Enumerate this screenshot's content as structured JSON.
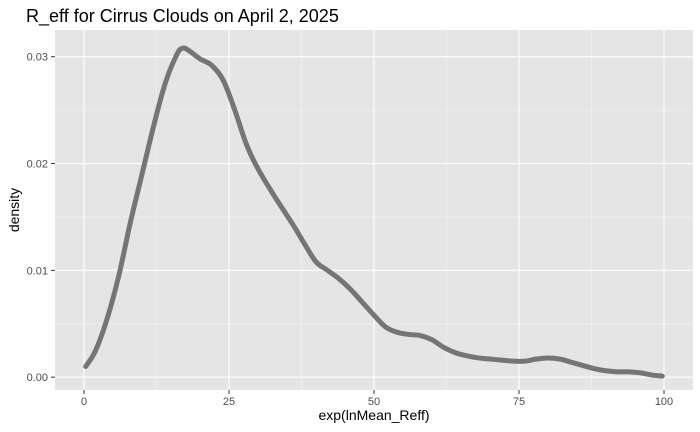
{
  "chart_data": {
    "type": "area",
    "title": "R_eff for Cirrus Clouds on April 2, 2025",
    "xlabel": "exp(lnMean_Reff)",
    "ylabel": "density",
    "xlim": [
      -5,
      105
    ],
    "ylim": [
      -0.0012,
      0.0325
    ],
    "x_ticks": [
      0,
      25,
      50,
      75,
      100
    ],
    "x_tick_labels": [
      "0",
      "25",
      "50",
      "75",
      "100"
    ],
    "y_ticks": [
      0.0,
      0.01,
      0.02,
      0.03
    ],
    "y_tick_labels": [
      "0.00",
      "0.01",
      "0.02",
      "0.03"
    ],
    "grid": true,
    "legend": "none",
    "colors": {
      "panel_background": "#e5e5e5",
      "grid_major": "#ffffff",
      "grid_minor": "#f2f2f2",
      "line": "#757575"
    },
    "series": [
      {
        "x": [
          0.3,
          2,
          4,
          6,
          8,
          10,
          12,
          14,
          16,
          17,
          18,
          20,
          22,
          24,
          26,
          28,
          30,
          33,
          36,
          38,
          40,
          42,
          44,
          46,
          48,
          50,
          52,
          54,
          56,
          58,
          60,
          62,
          64,
          66,
          68,
          70,
          72,
          74,
          76,
          78,
          80,
          82,
          84,
          86,
          88,
          90,
          92,
          94,
          96,
          98,
          99.7
        ],
        "y": [
          0.001,
          0.0025,
          0.0055,
          0.0095,
          0.0145,
          0.019,
          0.0235,
          0.0275,
          0.0302,
          0.0308,
          0.0306,
          0.0298,
          0.0292,
          0.0278,
          0.025,
          0.0218,
          0.0195,
          0.0168,
          0.0143,
          0.0125,
          0.0108,
          0.01,
          0.0092,
          0.0082,
          0.007,
          0.0058,
          0.0047,
          0.0042,
          0.004,
          0.0039,
          0.0035,
          0.0028,
          0.0023,
          0.002,
          0.0018,
          0.0017,
          0.0016,
          0.0015,
          0.0015,
          0.0017,
          0.0018,
          0.0017,
          0.0014,
          0.0011,
          0.0008,
          0.0006,
          0.0005,
          0.0005,
          0.0004,
          0.0002,
          0.0001
        ]
      }
    ]
  }
}
